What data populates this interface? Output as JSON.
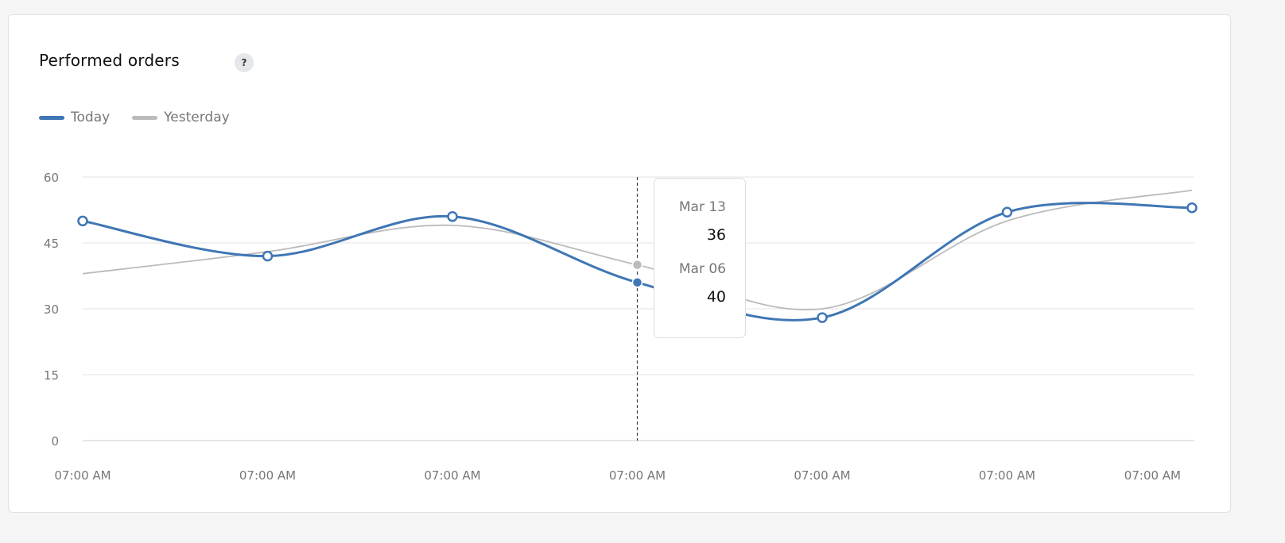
{
  "card": {
    "title": "Performed orders",
    "help_icon": "question-icon",
    "help_label": "?"
  },
  "chart_data": {
    "type": "line",
    "title": "Performed orders",
    "categories": [
      "07:00 AM",
      "07:00 AM",
      "07:00 AM",
      "07:00 AM",
      "07:00 AM",
      "07:00 AM",
      "07:00 AM"
    ],
    "ylim": [
      0,
      60
    ],
    "yticks": [
      0,
      15,
      30,
      45,
      60
    ],
    "grid": true,
    "legend_placement": "top-left",
    "smooth": true,
    "series": [
      {
        "name": "Today",
        "color": "#3f76b4",
        "values": [
          50,
          42,
          51,
          36,
          28,
          52,
          53
        ]
      },
      {
        "name": "Yesterday",
        "color": "#bbbbbb",
        "values": [
          38,
          43,
          49,
          40,
          30,
          50,
          57
        ]
      }
    ],
    "hover_index": 3,
    "tooltip": [
      {
        "date": "Mar 13",
        "value": "36"
      },
      {
        "date": "Mar 06",
        "value": "40"
      }
    ]
  }
}
